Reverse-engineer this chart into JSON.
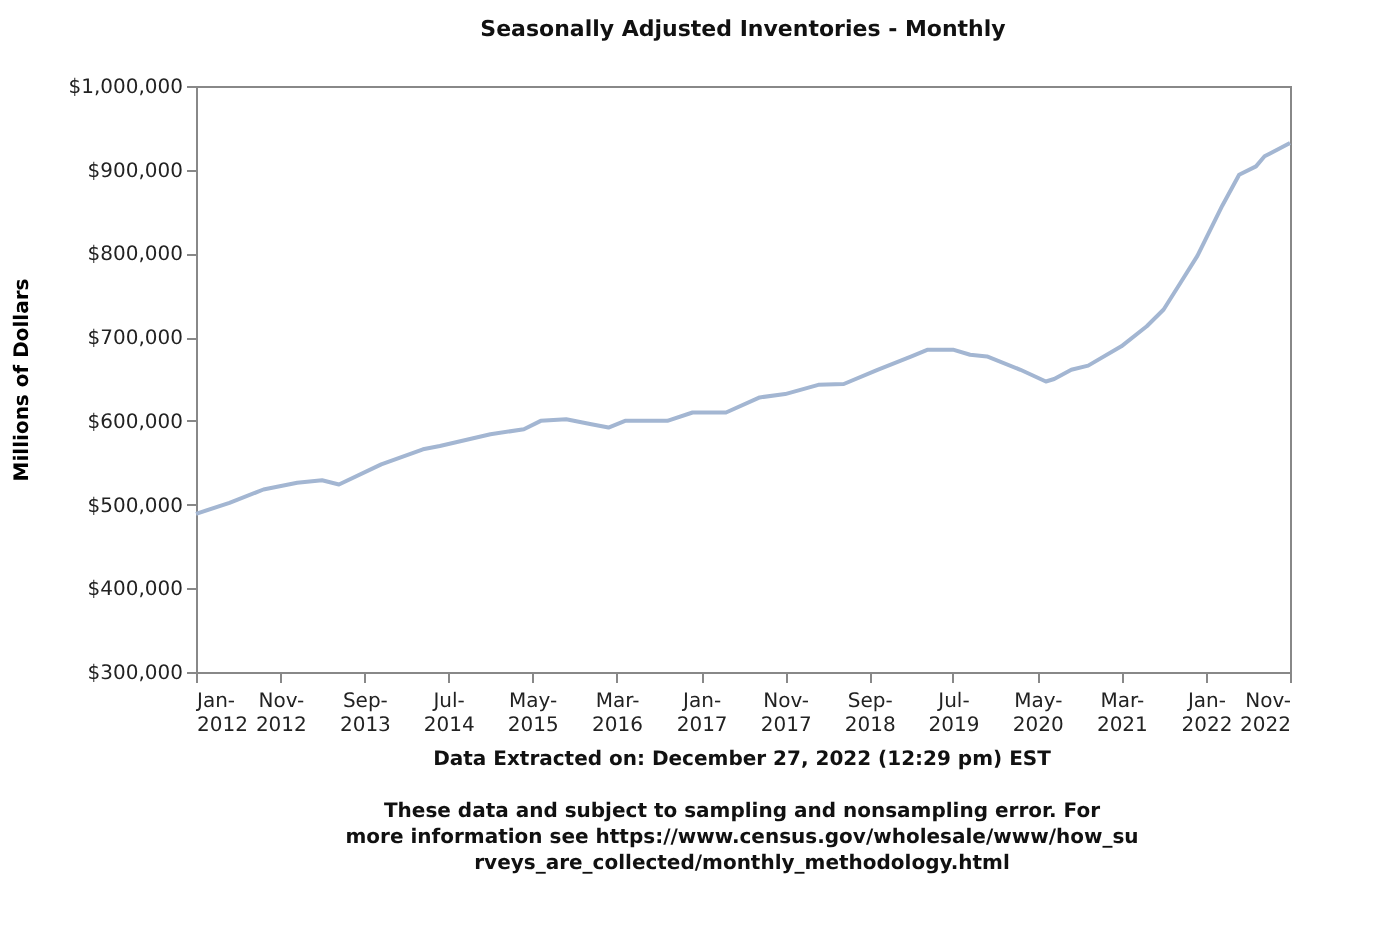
{
  "chart_data": {
    "type": "line",
    "title": "Seasonally Adjusted Inventories - Monthly",
    "ylabel": "Millions of Dollars",
    "x": [
      "2012-01",
      "2012-05",
      "2012-09",
      "2013-01",
      "2013-04",
      "2013-06",
      "2013-11",
      "2014-04",
      "2014-06",
      "2014-12",
      "2015-04",
      "2015-06",
      "2015-09",
      "2015-12",
      "2016-02",
      "2016-04",
      "2016-09",
      "2016-12",
      "2017-04",
      "2017-08",
      "2017-11",
      "2018-03",
      "2018-06",
      "2018-10",
      "2019-02",
      "2019-04",
      "2019-07",
      "2019-09",
      "2019-11",
      "2020-03",
      "2020-06",
      "2020-07",
      "2020-09",
      "2020-11",
      "2021-03",
      "2021-06",
      "2021-08",
      "2021-10",
      "2021-12",
      "2022-03",
      "2022-05",
      "2022-07",
      "2022-08",
      "2022-11"
    ],
    "series": [
      {
        "color": "#a3b6d2",
        "values": [
          489000,
          502000,
          518000,
          526000,
          529000,
          524000,
          548000,
          566000,
          570000,
          584000,
          590000,
          600000,
          602000,
          596000,
          592000,
          600000,
          600000,
          610000,
          610000,
          628000,
          632000,
          643000,
          644000,
          661000,
          677000,
          685000,
          685000,
          679000,
          677000,
          661000,
          647000,
          650000,
          661000,
          666000,
          689000,
          713000,
          733000,
          765000,
          797000,
          857000,
          894000,
          904000,
          916000,
          932000
        ]
      }
    ],
    "xlim": [
      "2012-01",
      "2022-11"
    ],
    "xticks": [
      {
        "value": "2012-01",
        "label": "Jan-2012"
      },
      {
        "value": "2012-11",
        "label": "Nov-2012"
      },
      {
        "value": "2013-09",
        "label": "Sep-2013"
      },
      {
        "value": "2014-07",
        "label": "Jul-2014"
      },
      {
        "value": "2015-05",
        "label": "May-2015"
      },
      {
        "value": "2016-03",
        "label": "Mar-2016"
      },
      {
        "value": "2017-01",
        "label": "Jan-2017"
      },
      {
        "value": "2017-11",
        "label": "Nov-2017"
      },
      {
        "value": "2018-09",
        "label": "Sep-2018"
      },
      {
        "value": "2019-07",
        "label": "Jul-2019"
      },
      {
        "value": "2020-05",
        "label": "May-2020"
      },
      {
        "value": "2021-03",
        "label": "Mar-2021"
      },
      {
        "value": "2022-01",
        "label": "Jan-2022"
      },
      {
        "value": "2022-11",
        "label": "Nov-2022"
      }
    ],
    "ylim": [
      300000,
      1000000
    ],
    "yticks": [
      {
        "value": 300000,
        "label": "$300,000"
      },
      {
        "value": 400000,
        "label": "$400,000"
      },
      {
        "value": 500000,
        "label": "$500,000"
      },
      {
        "value": 600000,
        "label": "$600,000"
      },
      {
        "value": 700000,
        "label": "$700,000"
      },
      {
        "value": 800000,
        "label": "$800,000"
      },
      {
        "value": 900000,
        "label": "$900,000"
      },
      {
        "value": 1000000,
        "label": "$1,000,000"
      }
    ],
    "grid": false,
    "marker": "none",
    "line_style": "solid",
    "annotations": [
      "Data Extracted on: December 27, 2022 (12:29 pm) EST",
      "These data and subject to sampling and nonsampling error. For more information see https://www.census.gov/wholesale/www/how_surveys_are_collected/monthly_methodology.html"
    ]
  }
}
